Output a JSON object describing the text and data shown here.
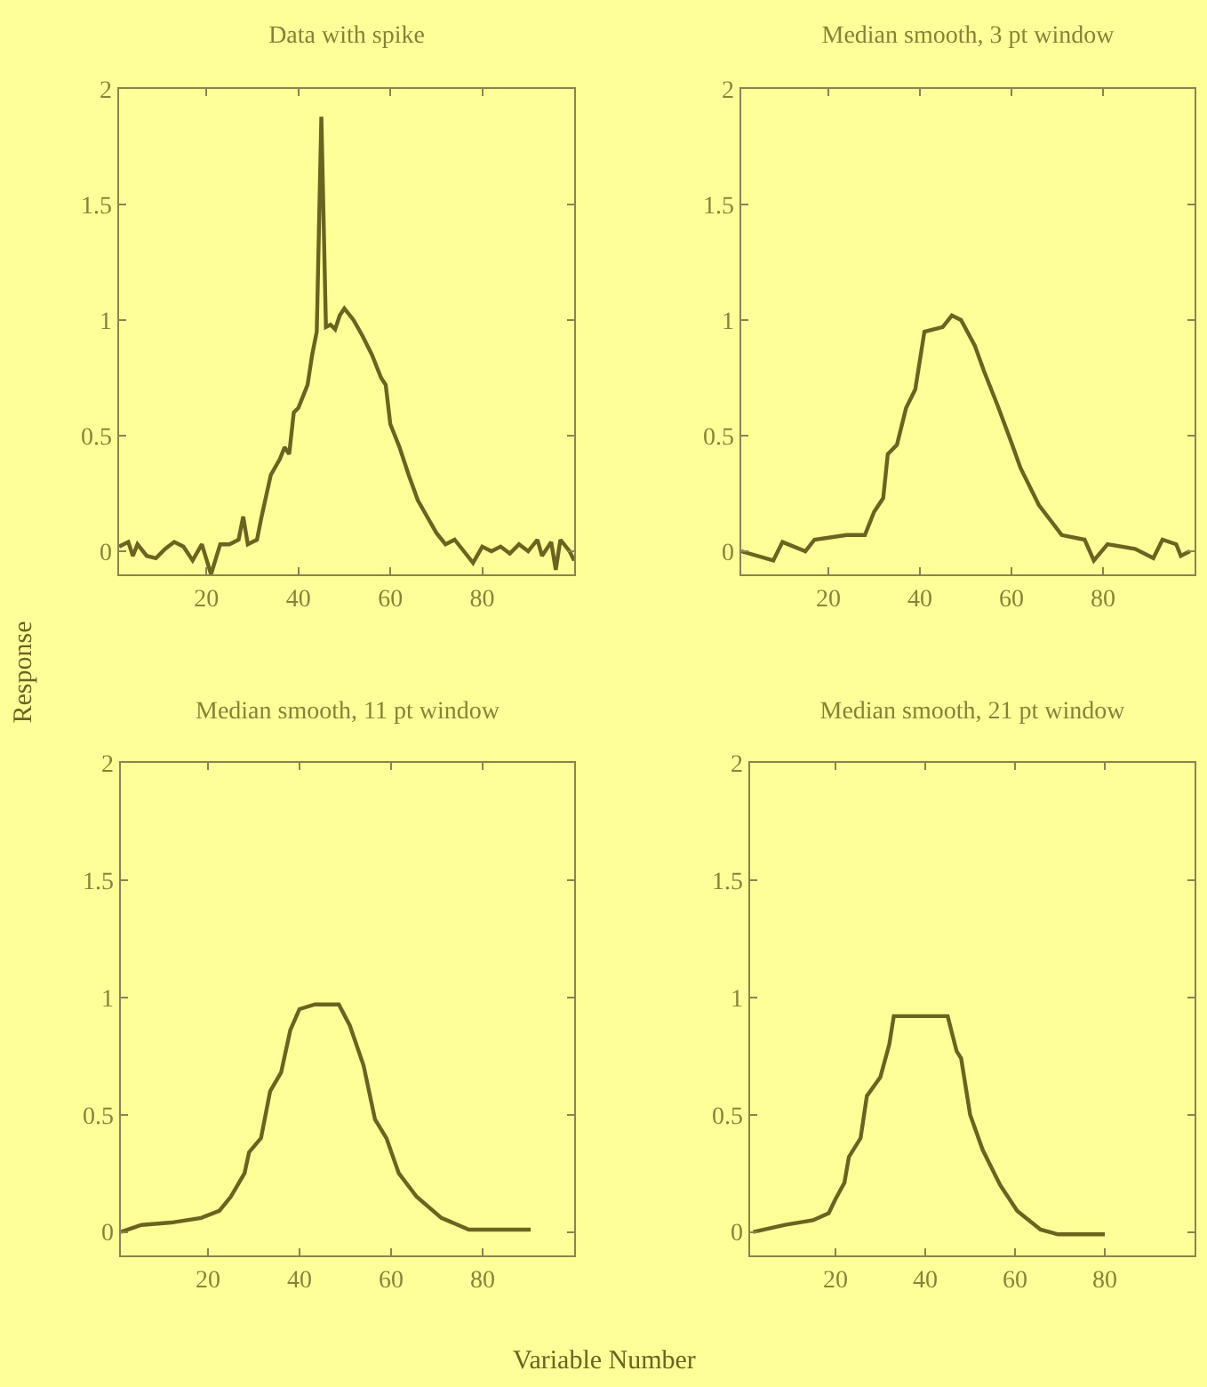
{
  "chart_data": [
    {
      "type": "line",
      "title": "Data with spike",
      "ylabel": "Response",
      "xlim": [
        1,
        100
      ],
      "ylim": [
        -0.1,
        2
      ],
      "xticks": [
        20,
        40,
        60,
        80
      ],
      "yticks": [
        0,
        0.5,
        1,
        1.5,
        2
      ],
      "x": [
        1,
        3,
        4,
        5,
        7,
        9,
        11,
        13,
        15,
        17,
        19,
        21,
        23,
        25,
        27,
        28,
        29,
        31,
        32,
        34,
        36,
        37,
        38,
        39,
        40,
        42,
        43,
        44,
        45,
        46,
        47,
        48,
        49,
        50,
        52,
        54,
        56,
        58,
        59,
        60,
        62,
        64,
        66,
        68,
        70,
        72,
        74,
        76,
        78,
        80,
        82,
        84,
        86,
        88,
        90,
        92,
        93,
        95,
        96,
        97,
        99,
        100
      ],
      "series": [
        {
          "color": "#6b6420",
          "values": [
            0.02,
            0.04,
            -0.02,
            0.03,
            -0.02,
            -0.03,
            0.01,
            0.04,
            0.02,
            -0.04,
            0.03,
            -0.1,
            0.03,
            0.03,
            0.05,
            0.15,
            0.03,
            0.05,
            0.15,
            0.33,
            0.4,
            0.45,
            0.42,
            0.6,
            0.62,
            0.72,
            0.85,
            0.95,
            1.88,
            0.97,
            0.98,
            0.96,
            1.02,
            1.05,
            1.0,
            0.93,
            0.85,
            0.75,
            0.72,
            0.55,
            0.45,
            0.33,
            0.22,
            0.15,
            0.08,
            0.03,
            0.05,
            0.0,
            -0.05,
            0.02,
            0.0,
            0.02,
            -0.01,
            0.03,
            0.0,
            0.05,
            -0.02,
            0.04,
            -0.08,
            0.05,
            0.0,
            -0.04
          ]
        }
      ]
    },
    {
      "type": "line",
      "title": "Median smooth, 3 pt window",
      "xlim": [
        1,
        100
      ],
      "ylim": [
        -0.1,
        2
      ],
      "xticks": [
        20,
        40,
        60,
        80
      ],
      "yticks": [
        0,
        0.5,
        1,
        1.5,
        2
      ],
      "x": [
        1,
        8,
        10,
        15,
        17,
        24,
        28,
        30,
        32,
        33,
        35,
        37,
        39,
        41,
        45,
        47,
        49,
        52,
        54,
        57,
        60,
        62,
        66,
        71,
        76,
        78,
        81,
        87,
        91,
        93,
        96,
        97,
        99
      ],
      "series": [
        {
          "color": "#6b6420",
          "values": [
            0,
            -0.04,
            0.04,
            0,
            0.05,
            0.07,
            0.07,
            0.17,
            0.23,
            0.42,
            0.46,
            0.62,
            0.7,
            0.95,
            0.97,
            1.02,
            1.0,
            0.89,
            0.78,
            0.63,
            0.47,
            0.36,
            0.2,
            0.07,
            0.05,
            -0.04,
            0.03,
            0.01,
            -0.03,
            0.05,
            0.03,
            -0.02,
            0
          ]
        }
      ]
    },
    {
      "type": "line",
      "title": "Median smooth, 11 pt window",
      "xlabel": "Variable Number",
      "xlim": [
        1,
        100
      ],
      "ylim": [
        -0.1,
        2
      ],
      "xticks": [
        20,
        40,
        60,
        80
      ],
      "yticks": [
        0,
        0.5,
        1,
        1.5,
        2
      ],
      "x": [
        1,
        5.5,
        12,
        18.5,
        22.5,
        25,
        28,
        29,
        31.6,
        33.6,
        36,
        38,
        40,
        43.4,
        48.6,
        51,
        54,
        56.5,
        59,
        61.7,
        65.6,
        71,
        77,
        90.5
      ],
      "series": [
        {
          "color": "#6b6420",
          "values": [
            0,
            0.03,
            0.04,
            0.06,
            0.09,
            0.15,
            0.25,
            0.34,
            0.4,
            0.6,
            0.68,
            0.86,
            0.95,
            0.97,
            0.97,
            0.88,
            0.71,
            0.48,
            0.4,
            0.25,
            0.15,
            0.06,
            0.01,
            0.01
          ]
        }
      ]
    },
    {
      "type": "line",
      "title": "Median smooth, 21 pt window",
      "xlim": [
        1,
        100
      ],
      "ylim": [
        -0.1,
        2
      ],
      "xticks": [
        20,
        40,
        60,
        80
      ],
      "yticks": [
        0,
        0.5,
        1,
        1.5,
        2
      ],
      "x": [
        1.7,
        8.8,
        15,
        18.5,
        20,
        22,
        23,
        25.6,
        27,
        30,
        32,
        33,
        45,
        47,
        48,
        50,
        52.8,
        56.7,
        60.5,
        65.7,
        69.6,
        80
      ],
      "series": [
        {
          "color": "#6b6420",
          "values": [
            0,
            0.03,
            0.05,
            0.08,
            0.14,
            0.21,
            0.32,
            0.4,
            0.58,
            0.66,
            0.8,
            0.92,
            0.92,
            0.77,
            0.74,
            0.5,
            0.35,
            0.2,
            0.09,
            0.01,
            -0.01,
            -0.01
          ]
        }
      ]
    }
  ]
}
